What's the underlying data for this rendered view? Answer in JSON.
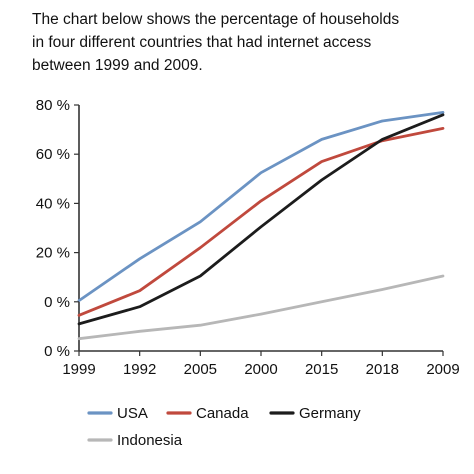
{
  "caption": {
    "line1": "The chart below shows the percentage of households",
    "line2": "in four different countries that had internet access",
    "line3": "between 1999 and 2009."
  },
  "chart_data": {
    "type": "line",
    "categories": [
      "1999",
      "1992",
      "2005",
      "2000",
      "2015",
      "2018",
      "2009"
    ],
    "y_ticks": [
      "80 %",
      "60 %",
      "40 %",
      "20 %",
      "0 %",
      "0 %"
    ],
    "ylim": [
      -20,
      80
    ],
    "grid": "none",
    "legend_position": "bottom",
    "series": [
      {
        "name": "USA",
        "color": "#6b93c3",
        "values": [
          0.5,
          17.5,
          32.5,
          52.5,
          66,
          73.5,
          77
        ]
      },
      {
        "name": "Canada",
        "color": "#c0493d",
        "values": [
          -5.5,
          4.5,
          22,
          41,
          57,
          65.5,
          70.5
        ]
      },
      {
        "name": "Germany",
        "color": "#1c1c1c",
        "values": [
          -9,
          -2,
          10.5,
          30.5,
          49.5,
          66,
          76
        ]
      },
      {
        "name": "Indonesia",
        "color": "#b7b7b7",
        "values": [
          -15,
          -12,
          -9.5,
          -5,
          0,
          5,
          10.5
        ]
      }
    ]
  }
}
